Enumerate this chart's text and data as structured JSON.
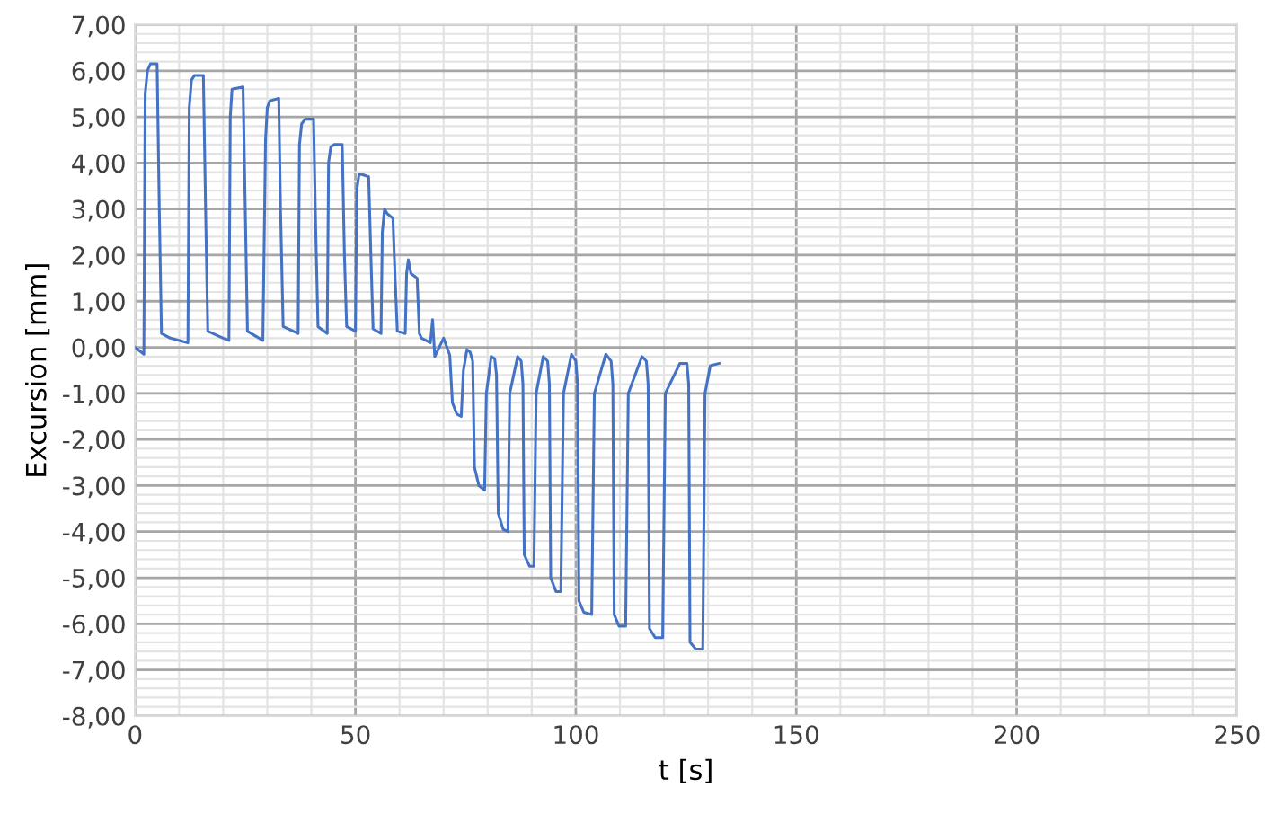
{
  "chart_data": {
    "type": "line",
    "xlabel": "t [s]",
    "ylabel": "Excursion [mm]",
    "grid": true,
    "legend": false,
    "marker": "none",
    "line_style": "solid",
    "xlim": [
      0,
      250
    ],
    "xticks": [
      0,
      50,
      100,
      150,
      200,
      250
    ],
    "ylim": [
      -8,
      7
    ],
    "yticks": [
      {
        "value": 7,
        "label": "7,00"
      },
      {
        "value": 6,
        "label": "6,00"
      },
      {
        "value": 5,
        "label": "5,00"
      },
      {
        "value": 4,
        "label": "4,00"
      },
      {
        "value": 3,
        "label": "3,00"
      },
      {
        "value": 2,
        "label": "2,00"
      },
      {
        "value": 1,
        "label": "1,00"
      },
      {
        "value": 0,
        "label": "0,00"
      },
      {
        "value": -1,
        "label": "-1,00"
      },
      {
        "value": -2,
        "label": "-2,00"
      },
      {
        "value": -3,
        "label": "-3,00"
      },
      {
        "value": -4,
        "label": "-4,00"
      },
      {
        "value": -5,
        "label": "-5,00"
      },
      {
        "value": -6,
        "label": "-6,00"
      },
      {
        "value": -7,
        "label": "-7,00"
      },
      {
        "value": -8,
        "label": "-8,00"
      }
    ],
    "series": [
      {
        "color": "#4472c4",
        "x": [
          0,
          2,
          2.3,
          2.8,
          3.5,
          5,
          5.5,
          6,
          8,
          12,
          12.3,
          12.8,
          13.5,
          15.5,
          16,
          16.5,
          20,
          21.3,
          21.6,
          22,
          24.5,
          25,
          25.5,
          29,
          29.6,
          30,
          30.6,
          32.6,
          33,
          33.6,
          37,
          37.3,
          37.8,
          38.6,
          40.5,
          41,
          41.5,
          43.6,
          43.9,
          44.4,
          45.2,
          47,
          47.5,
          48,
          50,
          50.3,
          50.8,
          51.5,
          53,
          53.5,
          54,
          55.8,
          56.1,
          56.6,
          57.2,
          58.5,
          59,
          59.5,
          61.3,
          61.6,
          62,
          62.6,
          64,
          64.5,
          65,
          67,
          67.5,
          68,
          70,
          71.4,
          72,
          73,
          74,
          74.5,
          75.3,
          76,
          76.6,
          77,
          78,
          79.3,
          79.7,
          80.8,
          81.6,
          82,
          82.4,
          83.5,
          84.6,
          85,
          86.8,
          87.6,
          88,
          88.3,
          89.5,
          90.5,
          91,
          92.6,
          93.6,
          94,
          94.3,
          95.5,
          96.6,
          97.2,
          99,
          100,
          100.4,
          100.7,
          101.8,
          103.6,
          104.2,
          106.8,
          108,
          108.4,
          108.7,
          109.8,
          111.3,
          111.9,
          115,
          116,
          116.4,
          116.7,
          118,
          119.7,
          120.3,
          123.6,
          125.2,
          125.6,
          125.9,
          127.2,
          128.8,
          129.3,
          130.5,
          132.5
        ],
        "values": [
          0,
          -0.15,
          5.5,
          6.0,
          6.15,
          6.15,
          3,
          0.3,
          0.2,
          0.1,
          5.2,
          5.8,
          5.9,
          5.9,
          3,
          0.35,
          0.2,
          0.15,
          5.0,
          5.6,
          5.65,
          3,
          0.35,
          0.15,
          4.5,
          5.2,
          5.35,
          5.4,
          3,
          0.45,
          0.3,
          4.4,
          4.85,
          4.95,
          4.95,
          2.5,
          0.45,
          0.3,
          4.0,
          4.35,
          4.4,
          4.4,
          2,
          0.45,
          0.35,
          3.4,
          3.75,
          3.75,
          3.7,
          2,
          0.4,
          0.3,
          2.5,
          3.0,
          2.9,
          2.8,
          1.5,
          0.35,
          0.3,
          1.6,
          1.9,
          1.6,
          1.5,
          0.3,
          0.2,
          0.1,
          0.6,
          -0.2,
          0.2,
          -0.17,
          -1.2,
          -1.45,
          -1.5,
          -0.5,
          -0.05,
          -0.1,
          -0.3,
          -2.6,
          -3.0,
          -3.1,
          -1.0,
          -0.2,
          -0.25,
          -0.6,
          -3.6,
          -3.95,
          -4.0,
          -1.0,
          -0.2,
          -0.3,
          -0.8,
          -4.5,
          -4.75,
          -4.75,
          -1.0,
          -0.2,
          -0.3,
          -0.8,
          -5.0,
          -5.3,
          -5.3,
          -1.0,
          -0.15,
          -0.3,
          -0.8,
          -5.5,
          -5.75,
          -5.8,
          -1.0,
          -0.15,
          -0.3,
          -0.8,
          -5.8,
          -6.05,
          -6.05,
          -1.0,
          -0.2,
          -0.3,
          -0.8,
          -6.1,
          -6.3,
          -6.3,
          -1.0,
          -0.35,
          -0.35,
          -0.8,
          -6.4,
          -6.55,
          -6.55,
          -1.0,
          -0.4,
          -0.35
        ]
      }
    ]
  }
}
